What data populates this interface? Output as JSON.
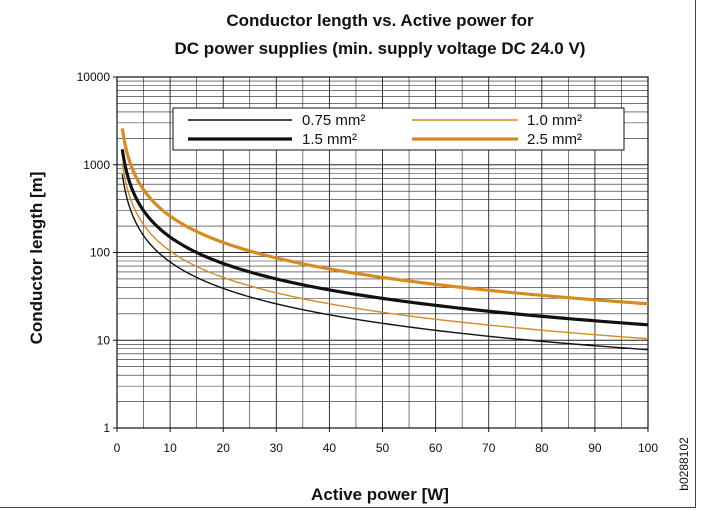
{
  "figure_code": "b0288102",
  "chart_data": {
    "type": "line",
    "title": "Conductor length vs. Active power for",
    "subtitle": "DC power supplies (min. supply voltage DC 24.0 V)",
    "xlabel": "Active power [W]",
    "ylabel": "Conductor length [m]",
    "xlim": [
      0,
      100
    ],
    "ylim": [
      1,
      10000
    ],
    "y_scale": "log",
    "x_ticks": [
      "0",
      "10",
      "20",
      "30",
      "40",
      "50",
      "60",
      "70",
      "80",
      "90",
      "100"
    ],
    "y_ticks": [
      "1",
      "10",
      "100",
      "1000",
      "10000"
    ],
    "grid": true,
    "legend_position": "top-right",
    "series": [
      {
        "name": "0.75 mm²",
        "color": "#111111",
        "weight": "thin",
        "x": [
          1,
          2,
          3,
          5,
          10,
          20,
          30,
          50,
          70,
          100
        ],
        "y": [
          780,
          390,
          260,
          156,
          78,
          39,
          26,
          15.6,
          11.1,
          7.8
        ]
      },
      {
        "name": "1.0 mm²",
        "color": "#d68a1f",
        "weight": "thin",
        "x": [
          1,
          2,
          3,
          5,
          10,
          20,
          30,
          50,
          70,
          100
        ],
        "y": [
          1040,
          520,
          347,
          208,
          104,
          52,
          34.7,
          20.8,
          14.9,
          10.4
        ]
      },
      {
        "name": "1.5 mm²",
        "color": "#111111",
        "weight": "thick",
        "x": [
          1,
          2,
          3,
          5,
          10,
          20,
          30,
          50,
          70,
          100
        ],
        "y": [
          1500,
          750,
          500,
          300,
          150,
          75,
          50,
          30,
          21.4,
          15
        ]
      },
      {
        "name": "2.5 mm²",
        "color": "#d68a1f",
        "weight": "thick",
        "x": [
          1,
          2,
          3,
          5,
          10,
          20,
          30,
          50,
          70,
          100
        ],
        "y": [
          2600,
          1300,
          867,
          520,
          260,
          130,
          86.7,
          52,
          37.1,
          26
        ]
      }
    ]
  }
}
